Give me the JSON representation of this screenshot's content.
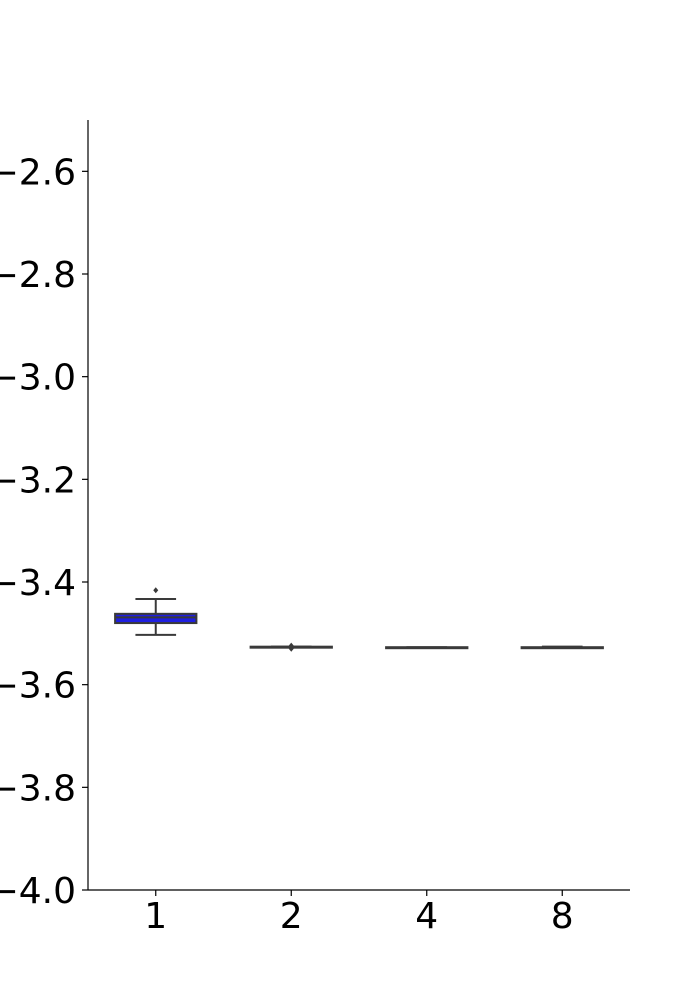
{
  "chart_data": {
    "type": "box",
    "title": "",
    "xlabel": "",
    "ylabel": "",
    "categories": [
      "1",
      "2",
      "4",
      "8"
    ],
    "ylim": [
      -4.0,
      -2.5
    ],
    "yticks": [
      -2.6,
      -2.8,
      -3.0,
      -3.2,
      -3.4,
      -3.6,
      -3.8,
      -4.0
    ],
    "ytick_labels": [
      "−2.6",
      "−2.8",
      "−3.0",
      "−3.2",
      "−3.4",
      "−3.6",
      "−3.8",
      "−4.0"
    ],
    "grid": false,
    "boxes": [
      {
        "category": "1",
        "whisker_low": -3.503,
        "q1": -3.48,
        "median": -3.469,
        "q3": -3.462,
        "whisker_high": -3.433,
        "outliers": [
          -3.416
        ],
        "fill": "#1f1fe0"
      },
      {
        "category": "2",
        "whisker_low": -3.527,
        "q1": -3.527,
        "median": -3.527,
        "q3": -3.526,
        "whisker_high": -3.526,
        "outliers": [
          -3.53,
          -3.524
        ],
        "fill": "#d9d9d9"
      },
      {
        "category": "4",
        "whisker_low": -3.528,
        "q1": -3.528,
        "median": -3.528,
        "q3": -3.527,
        "whisker_high": -3.527,
        "outliers": [],
        "fill": "#d9d9d9"
      },
      {
        "category": "8",
        "whisker_low": -3.528,
        "q1": -3.528,
        "median": -3.528,
        "q3": -3.527,
        "whisker_high": -3.526,
        "outliers": [],
        "fill": "#d9d9d9"
      }
    ],
    "colors": {
      "axis": "#000000",
      "box_edge": "#3a3a3a"
    }
  }
}
